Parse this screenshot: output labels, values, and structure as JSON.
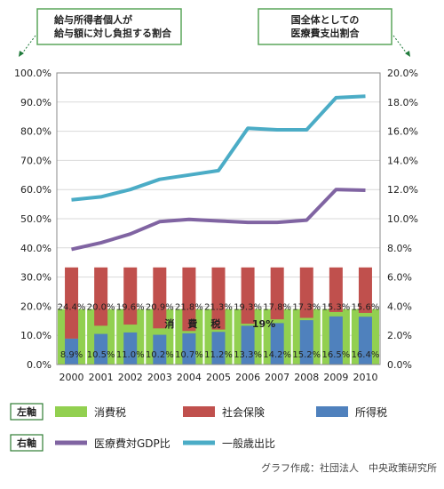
{
  "chart_data": {
    "type": "bar",
    "categories": [
      "2000",
      "2001",
      "2002",
      "2003",
      "2004",
      "2005",
      "2006",
      "2007",
      "2008",
      "2009",
      "2010"
    ],
    "left_axis": {
      "ylim": [
        0,
        100
      ],
      "ticks": [
        "0.0%",
        "10.0%",
        "20.0%",
        "30.0%",
        "40.0%",
        "50.0%",
        "60.0%",
        "70.0%",
        "80.0%",
        "90.0%",
        "100.0%"
      ],
      "note": "給与所得者個人が\n給与額に対し負担する割合"
    },
    "right_axis": {
      "ylim": [
        0,
        20
      ],
      "ticks": [
        "0.0%",
        "2.0%",
        "4.0%",
        "6.0%",
        "8.0%",
        "10.0%",
        "12.0%",
        "14.0%",
        "16.0%",
        "18.0%",
        "20.0%"
      ],
      "note": "国全体としての\n医療費支出割合"
    },
    "bar_series": [
      {
        "name": "所得税",
        "color": "#4f81bd",
        "values": [
          8.9,
          10.5,
          11.0,
          10.2,
          10.7,
          11.2,
          13.3,
          14.2,
          15.2,
          16.5,
          16.4
        ],
        "labels": [
          "8.9%",
          "10.5%",
          "11.0%",
          "10.2%",
          "10.7%",
          "11.2%",
          "13.3%",
          "14.2%",
          "15.2%",
          "16.5%",
          "16.4%"
        ]
      },
      {
        "name": "社会保険",
        "color": "#c0504d",
        "values": [
          24.4,
          20.0,
          19.6,
          20.9,
          21.8,
          21.3,
          19.3,
          17.8,
          17.3,
          15.3,
          15.6
        ],
        "labels": [
          "24.4%",
          "20.0%",
          "19.6%",
          "20.9%",
          "21.8%",
          "21.3%",
          "19.3%",
          "17.8%",
          "17.3%",
          "15.3%",
          "15.6%"
        ]
      }
    ],
    "consumption_tax": {
      "name": "消費税",
      "color": "#92d050",
      "label_chars": [
        "消",
        "費",
        "税"
      ],
      "rate_label": "19%"
    },
    "line_series": [
      {
        "name": "医療費対GDP比",
        "color": "#8064a2",
        "values": [
          7.9,
          8.35,
          8.95,
          9.8,
          9.95,
          9.85,
          9.75,
          9.75,
          9.9,
          12.0,
          11.95
        ]
      },
      {
        "name": "一般歳出比",
        "color": "#4bacc6",
        "values": [
          11.3,
          11.5,
          12.0,
          12.7,
          13.0,
          13.3,
          16.2,
          16.1,
          16.1,
          18.3,
          18.4
        ]
      }
    ],
    "legend": {
      "left_axis_tag": "左軸",
      "right_axis_tag": "右軸"
    },
    "credit": "グラフ作成：社団法人　中央政策研究所"
  }
}
